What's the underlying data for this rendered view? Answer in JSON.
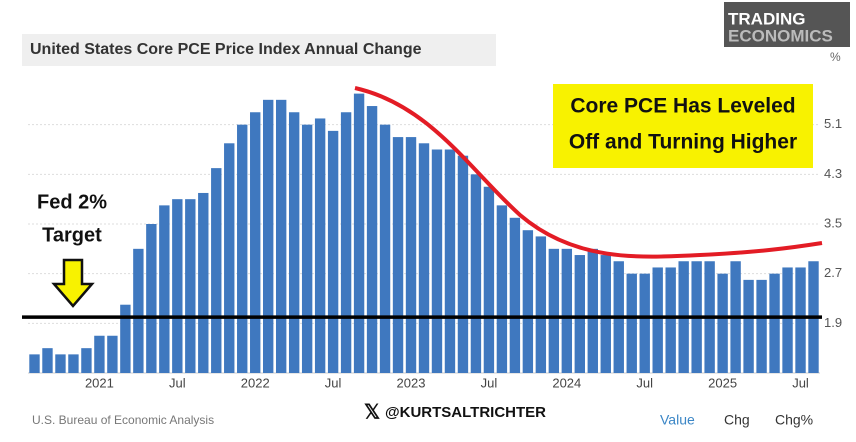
{
  "chart_data": {
    "type": "bar",
    "title": "United States Core PCE Price Index Annual Change",
    "brand": [
      "TRADING",
      "ECONOMICS"
    ],
    "unit": "%",
    "color": "#3f78bf",
    "categories": [
      null,
      null,
      null,
      null,
      null,
      "2021",
      null,
      null,
      null,
      null,
      null,
      "Jul",
      null,
      null,
      null,
      null,
      null,
      "2022",
      null,
      null,
      null,
      null,
      null,
      "Jul",
      null,
      null,
      null,
      null,
      null,
      "2023",
      null,
      null,
      null,
      null,
      null,
      "Jul",
      null,
      null,
      null,
      null,
      null,
      "2024",
      null,
      null,
      null,
      null,
      null,
      "Jul",
      null,
      null,
      null,
      null,
      null,
      "2025",
      null,
      null,
      null,
      null,
      null,
      "Jul",
      null
    ],
    "values": [
      1.4,
      1.5,
      1.4,
      1.4,
      1.5,
      1.7,
      1.7,
      2.2,
      3.1,
      3.5,
      3.8,
      3.9,
      3.9,
      4.0,
      4.4,
      4.8,
      5.1,
      5.3,
      5.5,
      5.5,
      5.3,
      5.1,
      5.2,
      5.0,
      5.3,
      5.6,
      5.4,
      5.1,
      4.9,
      4.9,
      4.8,
      4.7,
      4.7,
      4.6,
      4.3,
      4.1,
      3.8,
      3.6,
      3.4,
      3.3,
      3.1,
      3.1,
      3.0,
      3.1,
      3.0,
      2.9,
      2.7,
      2.7,
      2.8,
      2.8,
      2.9,
      2.9,
      2.9,
      2.7,
      2.9,
      2.6,
      2.6,
      2.7,
      2.8,
      2.8,
      2.9
    ],
    "ylim": [
      1.1,
      5.9
    ],
    "yticks": [
      1.9,
      2.7,
      3.5,
      4.3,
      5.1
    ],
    "grid": true,
    "target_value": 2.0,
    "target_label": [
      "Fed 2%",
      "Target"
    ],
    "annotation": [
      "Core PCE Has Leveled",
      "Off and Turning Higher"
    ],
    "source": "U.S. Bureau of Economic Analysis",
    "watermark": "@KURTSALTRICHTER",
    "tabs": [
      "Value",
      "Chg",
      "Chg%"
    ]
  }
}
